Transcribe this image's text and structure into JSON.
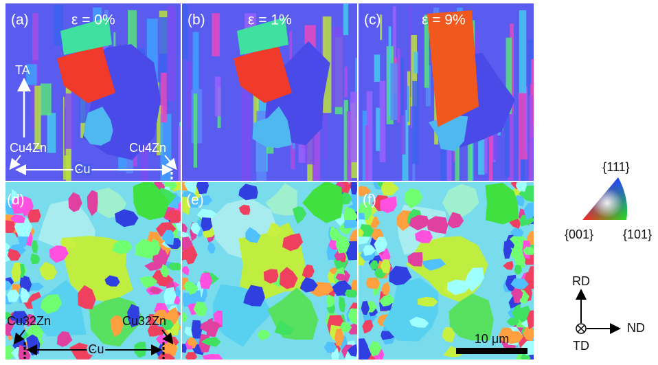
{
  "panels": [
    {
      "label": "(a)",
      "strain": "ε = 0%"
    },
    {
      "label": "(b)",
      "strain": "ε = 1%"
    },
    {
      "label": "(c)",
      "strain": "ε = 9%"
    },
    {
      "label": "(d)"
    },
    {
      "label": "(e)"
    },
    {
      "label": "(f)"
    }
  ],
  "annotations_top": {
    "axis": "TA",
    "left_phase": "Cu4Zn",
    "right_phase": "Cu4Zn",
    "matrix": "Cu"
  },
  "annotations_bottom": {
    "left_phase": "Cu32Zn",
    "right_phase": "Cu32Zn",
    "matrix": "Cu"
  },
  "scale_bar": "10 μm",
  "ipf_legend": {
    "top": "{111}",
    "left": "{001}",
    "right": "{101}"
  },
  "directions": {
    "up": "RD",
    "right": "ND",
    "out": "TD"
  }
}
